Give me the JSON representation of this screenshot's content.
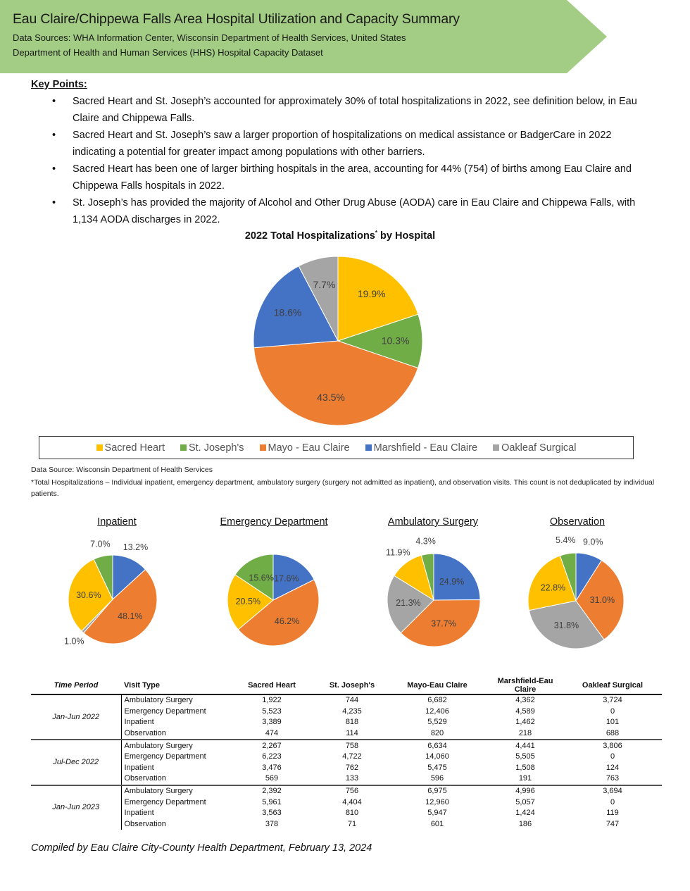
{
  "header": {
    "title": "Eau Claire/Chippewa Falls Area Hospital Utilization and Capacity Summary",
    "sources_line1": "Data Sources: WHA Information Center, Wisconsin Department of Health Services, United States",
    "sources_line2": "Department of Health and Human Services (HHS) Hospital Capacity Dataset",
    "banner_color": "#a3cd84"
  },
  "key_points": {
    "heading": "Key Points:",
    "items": [
      "Sacred Heart and St. Joseph’s accounted for approximately 30% of total hospitalizations in 2022, see definition below, in Eau Claire and Chippewa Falls.",
      "Sacred Heart and St. Joseph’s saw a larger proportion of hospitalizations on medical assistance or BadgerCare in 2022 indicating a potential for greater impact among populations with other barriers.",
      "Sacred Heart has been one of larger birthing hospitals in the area, accounting for 44% (754) of births among Eau Claire and Chippewa Falls hospitals in 2022.",
      "St. Joseph’s has provided the majority of Alcohol and Other Drug Abuse (AODA) care in Eau Claire and Chippewa Falls, with 1,134 AODA discharges in 2022."
    ]
  },
  "main_chart": {
    "title": "2022 Total Hospitalizations",
    "title_mark": "*",
    "title_suffix": " by Hospital"
  },
  "legend": [
    {
      "label": "Sacred Heart",
      "color": "#ffc000"
    },
    {
      "label": "St. Joseph's",
      "color": "#70ad47"
    },
    {
      "label": "Mayo - Eau Claire",
      "color": "#ed7d31"
    },
    {
      "label": "Marshfield - Eau Claire",
      "color": "#4472c4"
    },
    {
      "label": "Oakleaf Surgical",
      "color": "#a5a5a5"
    }
  ],
  "footnotes": {
    "source": "Data Source: Wisconsin Department of Health Services",
    "definition": "*Total Hospitalizations – Individual inpatient, emergency department, ambulatory surgery (surgery not admitted as inpatient), and observation visits. This count is not deduplicated by individual patients."
  },
  "chart_data": [
    {
      "type": "pie",
      "title": "2022 Total Hospitalizations* by Hospital",
      "categories": [
        "Sacred Heart",
        "St. Joseph's",
        "Mayo - Eau Claire",
        "Marshfield - Eau Claire",
        "Oakleaf Surgical"
      ],
      "values": [
        19.9,
        10.3,
        43.5,
        18.6,
        7.7
      ],
      "labels": [
        "19.9%",
        "10.3%",
        "43.5%",
        "18.6%",
        "7.7%"
      ]
    },
    {
      "type": "pie",
      "title": "Inpatient",
      "categories": [
        "Marshfield - Eau Claire",
        "Mayo - Eau Claire",
        "Oakleaf Surgical",
        "Sacred Heart",
        "St. Joseph's"
      ],
      "values": [
        13.2,
        48.1,
        1.0,
        30.6,
        7.0
      ],
      "labels": [
        "13.2%",
        "48.1%",
        "1.0%",
        "30.6%",
        "7.0%"
      ]
    },
    {
      "type": "pie",
      "title": "Emergency Department",
      "categories": [
        "Marshfield - Eau Claire",
        "Mayo - Eau Claire",
        "Oakleaf Surgical",
        "Sacred Heart",
        "St. Joseph's"
      ],
      "values": [
        17.6,
        46.2,
        0,
        20.5,
        15.6
      ],
      "labels": [
        "17.6%",
        "46.2%",
        "",
        "20.5%",
        "15.6%"
      ]
    },
    {
      "type": "pie",
      "title": "Ambulatory Surgery",
      "categories": [
        "Marshfield - Eau Claire",
        "Mayo - Eau Claire",
        "Oakleaf Surgical",
        "Sacred Heart",
        "St. Joseph's"
      ],
      "values": [
        24.9,
        37.7,
        21.3,
        11.9,
        4.3
      ],
      "labels": [
        "24.9%",
        "37.7%",
        "21.3%",
        "11.9%",
        "4.3%"
      ]
    },
    {
      "type": "pie",
      "title": "Observation",
      "categories": [
        "Marshfield - Eau Claire",
        "Mayo - Eau Claire",
        "Oakleaf Surgical",
        "Sacred Heart",
        "St. Joseph's"
      ],
      "values": [
        9.0,
        31.0,
        31.8,
        22.8,
        5.4
      ],
      "labels": [
        "9.0%",
        "31.0%",
        "31.8%",
        "22.8%",
        "5.4%"
      ]
    }
  ],
  "colors": {
    "Sacred Heart": "#ffc000",
    "St. Joseph's": "#70ad47",
    "Mayo - Eau Claire": "#ed7d31",
    "Marshfield - Eau Claire": "#4472c4",
    "Oakleaf Surgical": "#a5a5a5"
  },
  "table": {
    "headers": [
      "Time Period",
      "Visit Type",
      "Sacred Heart",
      "St. Joseph's",
      "Mayo-Eau Claire",
      "Marshfield-Eau Claire",
      "Oakleaf Surgical"
    ],
    "groups": [
      {
        "period": "Jan-Jun 2022",
        "rows": [
          [
            "Ambulatory Surgery",
            "1,922",
            "744",
            "6,682",
            "4,362",
            "3,724"
          ],
          [
            "Emergency Department",
            "5,523",
            "4,235",
            "12,406",
            "4,589",
            "0"
          ],
          [
            "Inpatient",
            "3,389",
            "818",
            "5,529",
            "1,462",
            "101"
          ],
          [
            "Observation",
            "474",
            "114",
            "820",
            "218",
            "688"
          ]
        ]
      },
      {
        "period": "Jul-Dec 2022",
        "rows": [
          [
            "Ambulatory Surgery",
            "2,267",
            "758",
            "6,634",
            "4,441",
            "3,806"
          ],
          [
            "Emergency Department",
            "6,223",
            "4,722",
            "14,060",
            "5,505",
            "0"
          ],
          [
            "Inpatient",
            "3,476",
            "762",
            "5,475",
            "1,508",
            "124"
          ],
          [
            "Observation",
            "569",
            "133",
            "596",
            "191",
            "763"
          ]
        ]
      },
      {
        "period": "Jan-Jun 2023",
        "rows": [
          [
            "Ambulatory Surgery",
            "2,392",
            "756",
            "6,975",
            "4,996",
            "3,694"
          ],
          [
            "Emergency Department",
            "5,961",
            "4,404",
            "12,960",
            "5,057",
            "0"
          ],
          [
            "Inpatient",
            "3,563",
            "810",
            "5,947",
            "1,424",
            "119"
          ],
          [
            "Observation",
            "378",
            "71",
            "601",
            "186",
            "747"
          ]
        ]
      }
    ]
  },
  "footer": "Compiled by Eau Claire City-County Health Department, February 13, 2024"
}
